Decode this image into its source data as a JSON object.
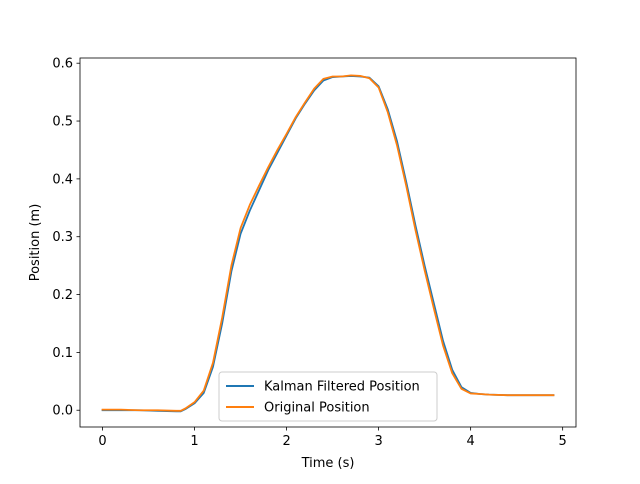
{
  "chart_data": {
    "type": "line",
    "title": "",
    "xlabel": "Time (s)",
    "ylabel": "Position (m)",
    "xlim": [
      -0.245,
      5.145
    ],
    "ylim": [
      -0.029,
      0.609
    ],
    "xticks": [
      0,
      1,
      2,
      3,
      4,
      5
    ],
    "yticks": [
      0.0,
      0.1,
      0.2,
      0.3,
      0.4,
      0.5,
      0.6
    ],
    "xtick_labels": [
      "0",
      "1",
      "2",
      "3",
      "4",
      "5"
    ],
    "ytick_labels": [
      "0.0",
      "0.1",
      "0.2",
      "0.3",
      "0.4",
      "0.5",
      "0.6"
    ],
    "grid": false,
    "legend_position": "bottom-center",
    "series": [
      {
        "name": "Kalman Filtered Position",
        "color": "#1f77b4",
        "x": [
          0.0,
          0.2,
          0.4,
          0.6,
          0.8,
          0.85,
          0.9,
          1.0,
          1.1,
          1.2,
          1.3,
          1.4,
          1.5,
          1.6,
          1.7,
          1.8,
          1.9,
          2.0,
          2.1,
          2.2,
          2.3,
          2.4,
          2.5,
          2.6,
          2.7,
          2.8,
          2.9,
          3.0,
          3.1,
          3.2,
          3.3,
          3.4,
          3.5,
          3.6,
          3.7,
          3.8,
          3.9,
          4.0,
          4.1,
          4.2,
          4.4,
          4.6,
          4.8,
          4.9
        ],
        "y": [
          0.0,
          0.0,
          0.0,
          -0.001,
          -0.002,
          -0.002,
          0.002,
          0.012,
          0.03,
          0.075,
          0.15,
          0.24,
          0.305,
          0.345,
          0.38,
          0.415,
          0.445,
          0.475,
          0.505,
          0.53,
          0.553,
          0.57,
          0.576,
          0.577,
          0.578,
          0.577,
          0.575,
          0.56,
          0.52,
          0.465,
          0.395,
          0.32,
          0.25,
          0.185,
          0.12,
          0.07,
          0.04,
          0.03,
          0.028,
          0.027,
          0.026,
          0.026,
          0.026,
          0.026
        ]
      },
      {
        "name": "Original Position",
        "color": "#ff7f0e",
        "x": [
          0.0,
          0.2,
          0.4,
          0.6,
          0.8,
          0.85,
          0.9,
          1.0,
          1.1,
          1.2,
          1.3,
          1.4,
          1.5,
          1.6,
          1.7,
          1.8,
          1.9,
          2.0,
          2.1,
          2.2,
          2.3,
          2.4,
          2.5,
          2.6,
          2.7,
          2.8,
          2.9,
          3.0,
          3.1,
          3.2,
          3.3,
          3.4,
          3.5,
          3.6,
          3.7,
          3.8,
          3.9,
          4.0,
          4.1,
          4.2,
          4.4,
          4.6,
          4.8,
          4.9
        ],
        "y": [
          0.001,
          0.001,
          0.0,
          0.0,
          -0.001,
          -0.001,
          0.003,
          0.014,
          0.034,
          0.082,
          0.16,
          0.25,
          0.315,
          0.355,
          0.388,
          0.42,
          0.45,
          0.478,
          0.507,
          0.532,
          0.556,
          0.573,
          0.577,
          0.577,
          0.579,
          0.578,
          0.574,
          0.558,
          0.515,
          0.458,
          0.388,
          0.312,
          0.242,
          0.176,
          0.112,
          0.064,
          0.037,
          0.029,
          0.028,
          0.027,
          0.026,
          0.026,
          0.026,
          0.026
        ]
      }
    ]
  }
}
